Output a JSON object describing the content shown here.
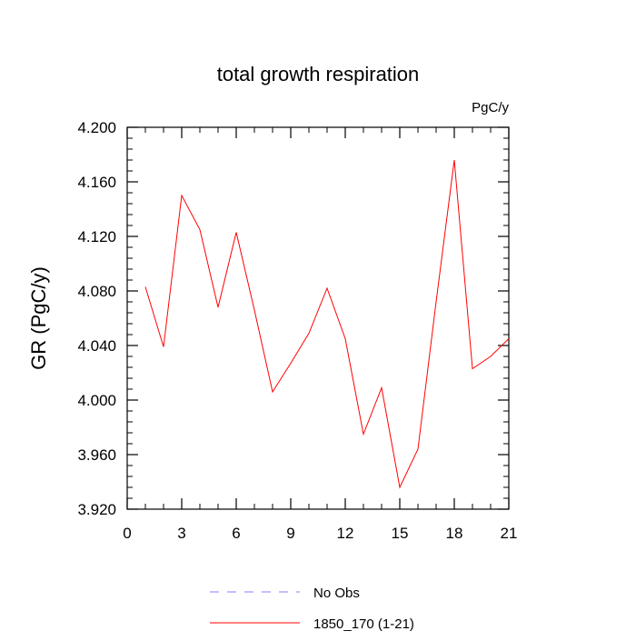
{
  "chart_data": {
    "type": "line",
    "title": "total growth respiration",
    "units_label": "PgC/y",
    "ylabel": "GR  (PgC/y)",
    "xlabel": "",
    "xlim": [
      0,
      21
    ],
    "ylim": [
      3.92,
      4.2
    ],
    "x_ticks": [
      0,
      3,
      6,
      9,
      12,
      15,
      18,
      21
    ],
    "x_tick_labels": [
      "0",
      "3",
      "6",
      "9",
      "12",
      "15",
      "18",
      "21"
    ],
    "y_ticks": [
      3.92,
      3.96,
      4.0,
      4.04,
      4.08,
      4.12,
      4.16,
      4.2
    ],
    "y_tick_labels": [
      "3.920",
      "3.960",
      "4.000",
      "4.040",
      "4.080",
      "4.120",
      "4.160",
      "4.200"
    ],
    "grid": false,
    "legend_position": "bottom-center",
    "series": [
      {
        "name": "1850_170 (1-21)",
        "color": "#ff0000",
        "style": "solid",
        "x": [
          1,
          2,
          3,
          4,
          5,
          6,
          7,
          8,
          9,
          10,
          11,
          12,
          13,
          14,
          15,
          16,
          17,
          18,
          19,
          20,
          21
        ],
        "values": [
          4.083,
          4.039,
          4.15,
          4.125,
          4.068,
          4.123,
          4.066,
          4.006,
          4.027,
          4.049,
          4.082,
          4.045,
          3.975,
          4.009,
          3.936,
          3.964,
          4.072,
          4.176,
          4.023,
          4.032,
          4.045
        ]
      }
    ],
    "legend": [
      {
        "label": "No Obs",
        "color": "#8080ff",
        "style": "dashed"
      },
      {
        "label": "1850_170 (1-21)",
        "color": "#ff0000",
        "style": "solid"
      }
    ]
  }
}
